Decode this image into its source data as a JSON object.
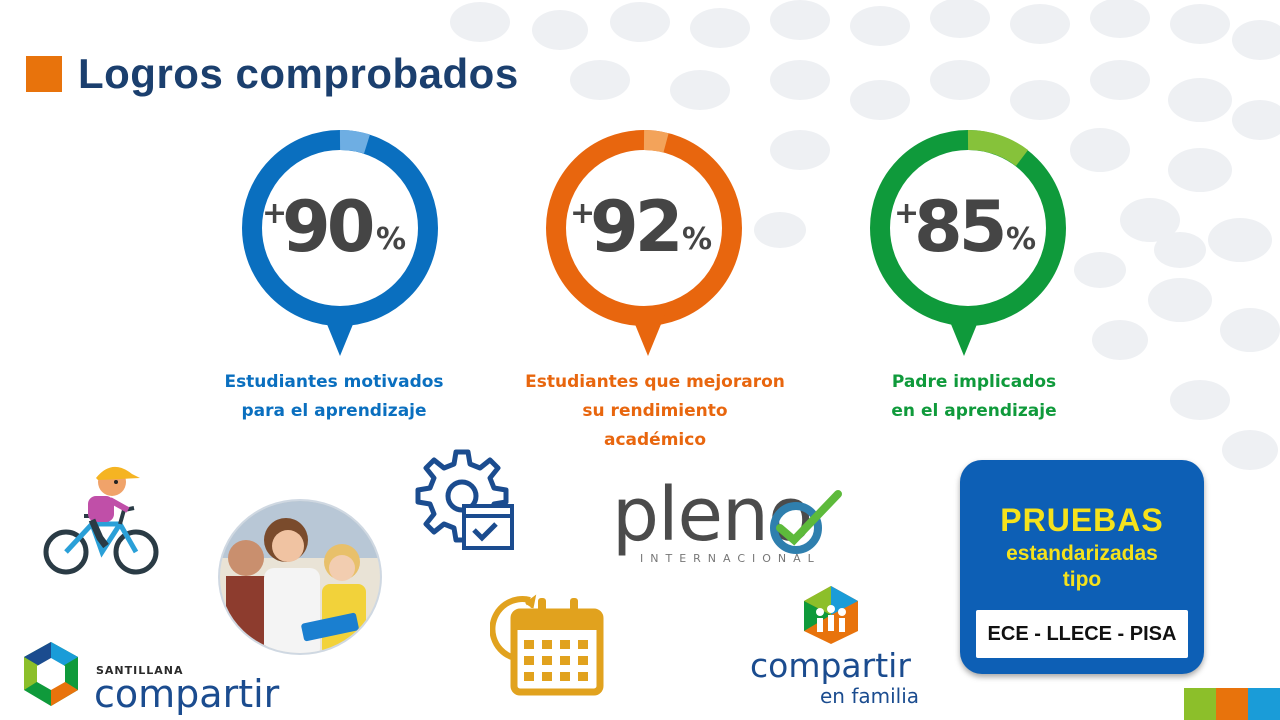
{
  "title": "Logros comprobados",
  "stats": [
    {
      "plus": "+",
      "value": "90",
      "unit": "%",
      "caption_line1": "Estudiantes motivados",
      "caption_line2": "para el aprendizaje",
      "caption_line3": "",
      "color": "#0a6fbf",
      "accent": "#6eaee3",
      "fraction": 0.9
    },
    {
      "plus": "+",
      "value": "92",
      "unit": "%",
      "caption_line1": "Estudiantes que mejoraron",
      "caption_line2": "su rendimiento",
      "caption_line3": "académico",
      "color": "#e8660e",
      "accent": "#f3a35a",
      "fraction": 0.92
    },
    {
      "plus": "+",
      "value": "85",
      "unit": "%",
      "caption_line1": "Padre implicados",
      "caption_line2": "en el aprendizaje",
      "caption_line3": "",
      "color": "#0f9a3b",
      "accent": "#86c23a",
      "fraction": 0.85
    }
  ],
  "logos": {
    "santillana_brand": "SANTILLANA",
    "santillana_name": "compartir",
    "familia_name": "compartir",
    "familia_sub": "en familia",
    "pleno_name": "pleno",
    "pleno_sub": "INTERNACIONAL"
  },
  "badge": {
    "line1": "PRUEBAS",
    "line2": "estandarizadas",
    "line3": "tipo",
    "bar": "ECE - LLECE - PISA"
  },
  "icons": [
    "bicycle-child-icon",
    "gear-check-icon",
    "calendar-clock-icon"
  ],
  "colors": {
    "title": "#1b3f6e",
    "accent_orange": "#e8730c",
    "blue": "#0a6fbf",
    "green": "#0f9a3b",
    "corner_squares": [
      "#8cbf2a",
      "#e8730c",
      "#1a9cd8"
    ]
  }
}
